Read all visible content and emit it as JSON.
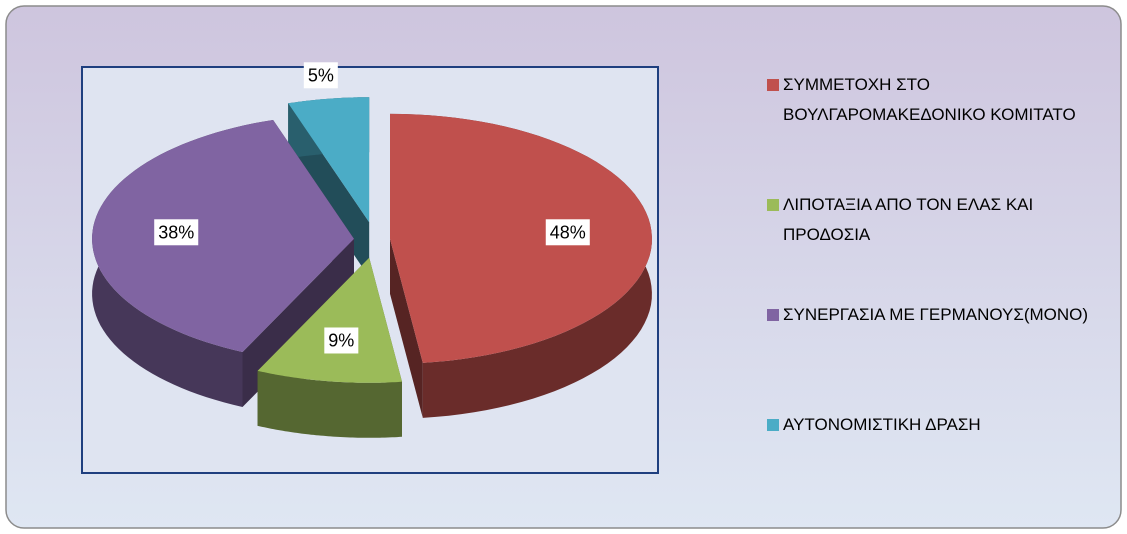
{
  "chart_data": {
    "type": "pie3d",
    "categories": [
      "ΣΥΜΜΕΤΟΧΗ ΣΤΟ ΒΟΥΛΓΑΡΟΜΑΚΕΔΟΝΙΚΟ ΚΟΜΙΤΑΤΟ",
      "ΛΙΠΟΤΑΞΙΑ ΑΠΟ ΤΟΝ ΕΛΑΣ ΚΑΙ ΠΡΟΔΟΣΙΑ",
      "ΣΥΝΕΡΓΑΣΙΑ ΜΕ ΓΕΡΜΑΝΟΥΣ(ΜΟΝΟ)",
      "ΑΥΤΟΝΟΜΙΣΤΙΚΗ ΔΡΑΣΗ"
    ],
    "values": [
      48,
      9,
      38,
      5
    ],
    "value_labels": [
      "48%",
      "9%",
      "38%",
      "5%"
    ],
    "colors": [
      "#c0504d",
      "#9bbb59",
      "#8064a2",
      "#4bacc6"
    ],
    "legend": "right"
  }
}
